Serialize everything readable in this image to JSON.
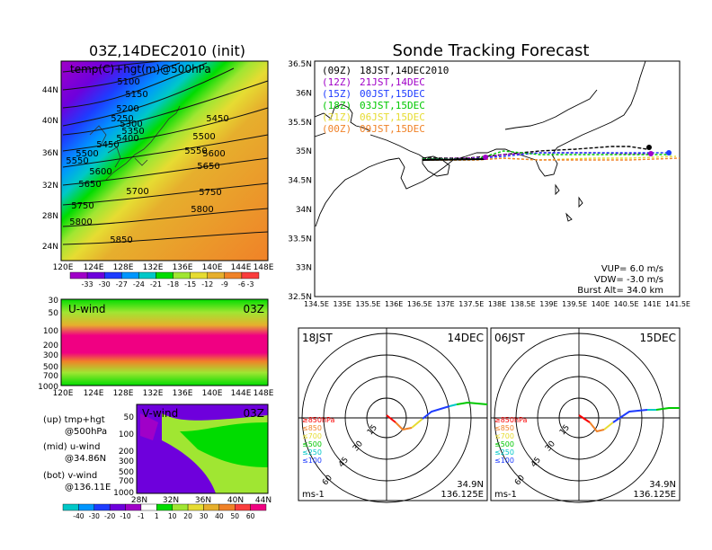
{
  "left_title": "03Z,14DEC2010 (init)",
  "right_title": "Sonde Tracking Forecast",
  "top_panel": {
    "label": "temp(C)+hgt(m)@500hPa",
    "lat_labels": [
      "44N",
      "40N",
      "36N",
      "32N",
      "28N",
      "24N"
    ],
    "lon_labels": [
      "120E",
      "124E",
      "128E",
      "132E",
      "136E",
      "140E",
      "144E",
      "148E"
    ],
    "contours": [
      "5100",
      "5150",
      "5200",
      "5250",
      "5300",
      "5350",
      "5400",
      "5450",
      "5450",
      "5500",
      "5500",
      "5550",
      "5550",
      "5600",
      "5600",
      "5650",
      "5650",
      "5700",
      "5750",
      "5750",
      "5800",
      "5800",
      "5850"
    ],
    "colorbar_labels": [
      "-33",
      "-30",
      "-27",
      "-24",
      "-21",
      "-18",
      "-15",
      "-12",
      "-9",
      "-6",
      "-3"
    ],
    "colorbar_colors": [
      "#a000c8",
      "#6e00dc",
      "#1e3cff",
      "#0096ff",
      "#00c8c8",
      "#00dc00",
      "#a0e632",
      "#e6dc32",
      "#e6af2d",
      "#f08228",
      "#fa3c3c"
    ]
  },
  "u_panel": {
    "label": "U-wind",
    "time": "03Z",
    "p_labels": [
      "30",
      "50",
      "100",
      "200",
      "300",
      "500",
      "700",
      "1000"
    ],
    "lon_labels": [
      "120E",
      "124E",
      "128E",
      "132E",
      "136E",
      "140E",
      "144E",
      "148E"
    ]
  },
  "v_panel": {
    "label": "V-wind",
    "time": "03Z",
    "p_labels": [
      "50",
      "100",
      "200",
      "300",
      "500",
      "700",
      "1000"
    ],
    "lat_labels": [
      "28N",
      "32N",
      "36N",
      "40N",
      "44N"
    ]
  },
  "side_notes": [
    {
      "a": "(up) tmp+hgt",
      "b": "@500hPa"
    },
    {
      "a": "(mid) u-wind",
      "b": "@34.86N"
    },
    {
      "a": "(bot) v-wind",
      "b": "@136.11E"
    }
  ],
  "wind_colorbar": {
    "labels": [
      "-40",
      "-30",
      "-20",
      "-10",
      "-1",
      "1",
      "10",
      "20",
      "30",
      "40",
      "50",
      "60"
    ],
    "colors": [
      "#00c8c8",
      "#0096ff",
      "#1e3cff",
      "#6e00dc",
      "#a000c8",
      "#ffffff",
      "#00dc00",
      "#a0e632",
      "#e6dc32",
      "#e6af2d",
      "#f08228",
      "#fa3c3c",
      "#f00082"
    ]
  },
  "map": {
    "lat_labels": [
      "36.5N",
      "36N",
      "35.5N",
      "35N",
      "34.5N",
      "34N",
      "33.5N",
      "33N",
      "32.5N"
    ],
    "lon_labels": [
      "134.5E",
      "135E",
      "135.5E",
      "136E",
      "136.5E",
      "137E",
      "137.5E",
      "138E",
      "138.5E",
      "139E",
      "139.5E",
      "140E",
      "140.5E",
      "141E",
      "141.5E"
    ],
    "legend": [
      {
        "a": "(09Z)",
        "b": "18JST,14DEC2010",
        "color": "#000000"
      },
      {
        "a": "(12Z)",
        "b": "21JST,14DEC",
        "color": "#a000c8"
      },
      {
        "a": "(15Z)",
        "b": "00JST,15DEC",
        "color": "#1e3cff"
      },
      {
        "a": "(18Z)",
        "b": "03JST,15DEC",
        "color": "#00c800"
      },
      {
        "a": "(21Z)",
        "b": "06JST,15DEC",
        "color": "#e6dc32"
      },
      {
        "a": "(00Z)",
        "b": "09JST,15DEC",
        "color": "#f08228"
      }
    ],
    "vup": "VUP= 6.0 m/s",
    "vdw": "VDW= -3.0 m/s",
    "burst": "Burst Alt= 34.0 km"
  },
  "hodographs": [
    {
      "time": "18JST",
      "date": "14DEC",
      "lat": "34.9N",
      "lon": "136.125E",
      "unit": "ms-1"
    },
    {
      "time": "06JST",
      "date": "15DEC",
      "lat": "34.9N",
      "lon": "136.125E",
      "unit": "ms-1"
    }
  ],
  "hodo_rings": [
    "15",
    "30",
    "45",
    "60"
  ],
  "hodo_levels": [
    {
      "label": "≥850hPa",
      "color": "#fa0000"
    },
    {
      "label": "≤850",
      "color": "#f08228"
    },
    {
      "label": "≤700",
      "color": "#e6dc32"
    },
    {
      "label": "≤500",
      "color": "#00c800"
    },
    {
      "label": "≤250",
      "color": "#00c8c8"
    },
    {
      "label": "≤100",
      "color": "#1e3cff"
    }
  ]
}
